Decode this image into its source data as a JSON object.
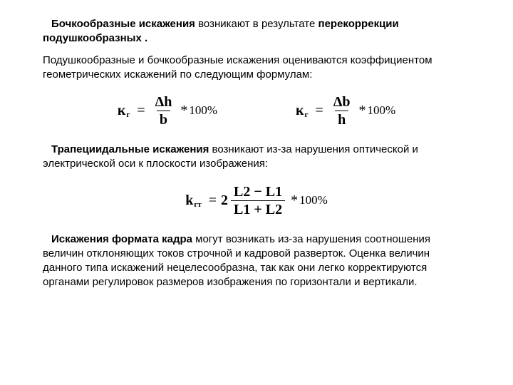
{
  "colors": {
    "text": "#000000",
    "background": "#ffffff",
    "rule": "#000000"
  },
  "typography": {
    "body_font": "Arial",
    "body_size_pt": 12,
    "formula_font": "Times New Roman",
    "formula_size_pt": 15,
    "formula_weight": "bold"
  },
  "p1": {
    "lead_bold": "Бочкообразные искажения",
    "middle": " возникают в результате ",
    "tail_bold": "перекоррекции подушкообразных ."
  },
  "p2": "Подушкообразные и бочкообразные искажения оцениваются коэффициентом геометрических искажений по следующим формулам:",
  "formula1": {
    "k": "к",
    "sub": "г",
    "eq": "=",
    "num": "Δh",
    "den": "b",
    "star": "*",
    "pct": "100%"
  },
  "formula2": {
    "k": "к",
    "sub": "г",
    "eq": "=",
    "num": "Δb",
    "den": "h",
    "star": "*",
    "pct": "100%"
  },
  "p3": {
    "lead_bold": "Трапециидальные искажения",
    "rest": " возникают из-за нарушения оптической и электрической оси к плоскости изображения:"
  },
  "formula3": {
    "k": "k",
    "sub": "гт",
    "eq": "=",
    "two": "2",
    "num": "L2 − L1",
    "den": "L1 + L2",
    "star": "*",
    "pct": "100%"
  },
  "p4": {
    "lead_bold": "Искажения формата кадра",
    "rest": " могут возникать из-за нарушения соотношения величин отклоняющих токов строчной и кадровой разверток. Оценка величин данного типа искажений нецелесообразна, так как они легко корректируются органами регулировок размеров изображения по горизонтали и вертикали."
  }
}
